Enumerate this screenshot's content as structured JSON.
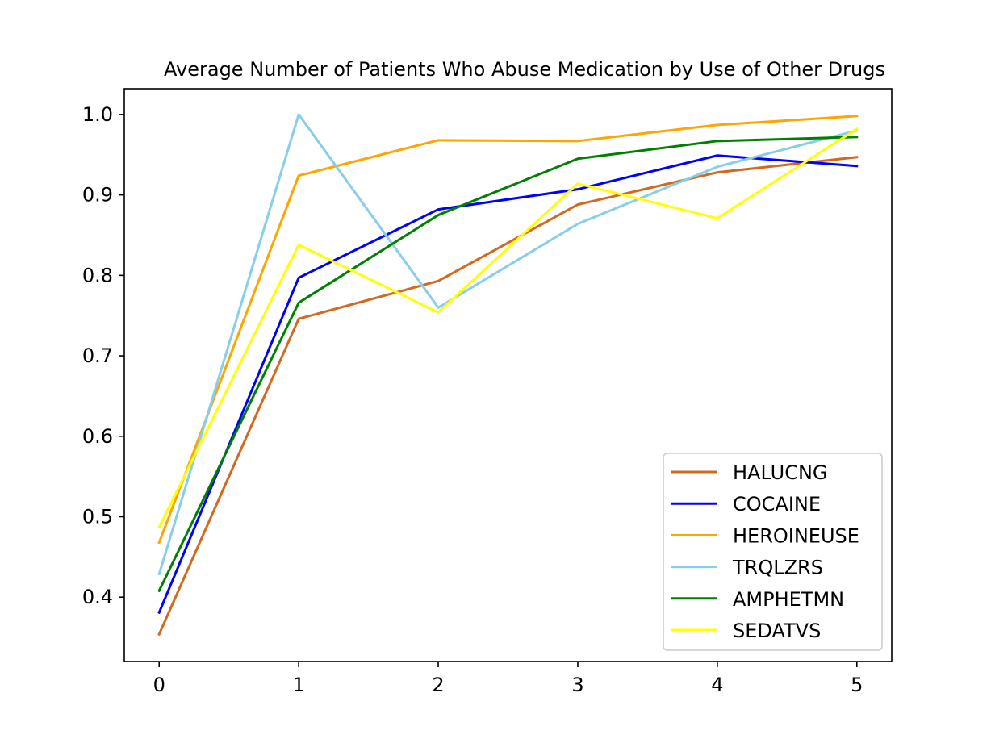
{
  "chart_data": {
    "type": "line",
    "title": "Average Number of Patients Who Abuse Medication by Use of Other Drugs",
    "xlabel": "",
    "ylabel": "",
    "x": [
      0,
      1,
      2,
      3,
      4,
      5
    ],
    "xlim": [
      -0.25,
      5.25
    ],
    "ylim": [
      0.32,
      1.032
    ],
    "xticks": [
      0,
      1,
      2,
      3,
      4,
      5
    ],
    "yticks": [
      0.4,
      0.5,
      0.6,
      0.7,
      0.8,
      0.9,
      1.0
    ],
    "ytick_labels": [
      "0.4",
      "0.5",
      "0.6",
      "0.7",
      "0.8",
      "0.9",
      "1.0"
    ],
    "xtick_labels": [
      "0",
      "1",
      "2",
      "3",
      "4",
      "5"
    ],
    "grid": false,
    "legend_position": "lower-right",
    "series": [
      {
        "name": "HALUCNG",
        "color": "#d2691e",
        "values": [
          0.354,
          0.746,
          0.793,
          0.888,
          0.928,
          0.947
        ]
      },
      {
        "name": "COCAINE",
        "color": "#0000ff",
        "values": [
          0.381,
          0.797,
          0.882,
          0.907,
          0.949,
          0.936
        ]
      },
      {
        "name": "HEROINEUSE",
        "color": "#ffa500",
        "values": [
          0.468,
          0.924,
          0.968,
          0.967,
          0.987,
          0.998
        ]
      },
      {
        "name": "TRQLZRS",
        "color": "#87ceeb",
        "values": [
          0.429,
          1.0,
          0.76,
          0.864,
          0.935,
          0.98
        ]
      },
      {
        "name": "AMPHETMN",
        "color": "#008000",
        "values": [
          0.408,
          0.766,
          0.875,
          0.945,
          0.967,
          0.972
        ]
      },
      {
        "name": "SEDATVS",
        "color": "#ffff00",
        "values": [
          0.487,
          0.838,
          0.754,
          0.914,
          0.871,
          0.982
        ]
      }
    ]
  }
}
